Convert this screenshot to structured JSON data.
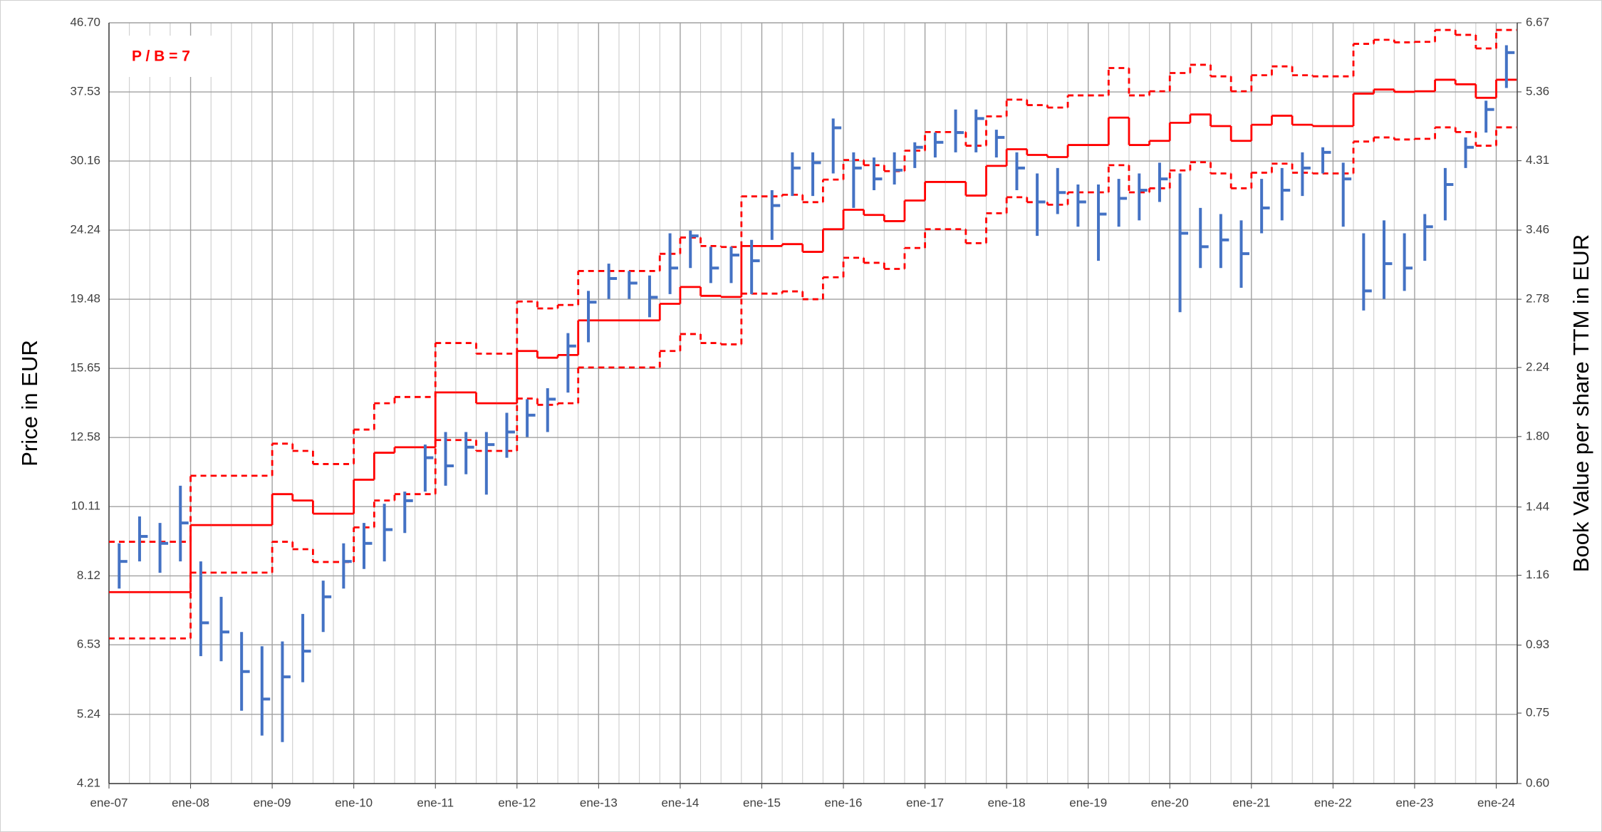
{
  "chart_data": {
    "type": "ohlc-bands",
    "annotation": "P / B = 7",
    "ylabel": "Price in EUR",
    "y2label": "Book Value per share TTM in EUR",
    "log_scale": true,
    "grid": true,
    "ylim": [
      4.21,
      46.7
    ],
    "yticks": [
      4.21,
      5.24,
      6.53,
      8.12,
      10.11,
      12.58,
      15.65,
      19.48,
      24.24,
      30.16,
      37.53,
      {
        "value": 46.7,
        "label": "46.70"
      }
    ],
    "y2lim": [
      0.6,
      6.67
    ],
    "y2ticks": [
      {
        "value": 0.6,
        "label": "0.60"
      },
      0.75,
      0.93,
      1.16,
      1.44,
      {
        "value": 1.8,
        "label": "1.80"
      },
      2.24,
      2.78,
      3.46,
      4.31,
      5.36,
      6.67
    ],
    "categories": [
      "ene-07",
      null,
      null,
      null,
      "ene-08",
      null,
      null,
      null,
      "ene-09",
      null,
      null,
      null,
      "ene-10",
      null,
      null,
      null,
      "ene-11",
      null,
      null,
      null,
      "ene-12",
      null,
      null,
      null,
      "ene-13",
      null,
      null,
      null,
      "ene-14",
      null,
      null,
      null,
      "ene-15",
      null,
      null,
      null,
      "ene-16",
      null,
      null,
      null,
      "ene-17",
      null,
      null,
      null,
      "ene-18",
      null,
      null,
      null,
      "ene-19",
      null,
      null,
      null,
      "ene-20",
      null,
      null,
      null,
      "ene-21",
      null,
      null,
      null,
      "ene-22",
      null,
      null,
      null,
      "ene-23",
      null,
      null,
      null,
      "ene-24"
    ],
    "price": {
      "color": "#4472c4",
      "high": [
        9,
        9.8,
        9.6,
        10.8,
        8.5,
        7.6,
        6.8,
        6.5,
        6.6,
        7.2,
        8,
        9,
        9.6,
        10.2,
        10.6,
        12.3,
        12.8,
        12.8,
        12.8,
        13.6,
        14.2,
        14.7,
        17.5,
        20,
        21.8,
        21.3,
        21,
        24,
        24.2,
        23,
        23,
        23.5,
        27.5,
        31,
        31,
        34.5,
        31,
        30.5,
        31,
        32,
        33,
        35.5,
        35.5,
        33.3,
        31,
        29,
        29.5,
        28,
        28,
        28.5,
        29,
        30,
        29,
        26,
        25.5,
        25,
        28.5,
        29.5,
        31,
        31.5,
        30,
        24,
        25,
        24,
        25.5,
        29.5,
        32.5,
        36.5,
        43.5
      ],
      "low": [
        7.8,
        8.5,
        8.2,
        8.5,
        6.3,
        6.2,
        5.3,
        4.9,
        4.8,
        5.8,
        6.8,
        7.8,
        8.3,
        8.5,
        9.3,
        10.6,
        10.8,
        11.2,
        10.5,
        11.8,
        12.6,
        12.8,
        14.5,
        17,
        19.5,
        19.5,
        18.4,
        19.8,
        21.5,
        20.5,
        20.5,
        19.8,
        23.5,
        27,
        27,
        29,
        26,
        27.5,
        28,
        29.5,
        30.5,
        31,
        31,
        30.5,
        27.5,
        23.8,
        25.5,
        24.5,
        22,
        24.5,
        25,
        26.5,
        18.7,
        21.5,
        21.5,
        20.2,
        24,
        25,
        27,
        29,
        24.5,
        18.8,
        19.5,
        20,
        22,
        25,
        29.5,
        33,
        38
      ],
      "close": [
        8.5,
        9.2,
        9,
        9.6,
        7,
        6.8,
        6,
        5.5,
        5.9,
        6.4,
        7.6,
        8.5,
        9,
        9.4,
        10.3,
        11.8,
        11.5,
        12.2,
        12.3,
        12.8,
        13.5,
        14.2,
        16.8,
        19.3,
        20.8,
        20.5,
        19.6,
        21.5,
        23.8,
        21.5,
        22.4,
        22,
        26.2,
        29.5,
        30,
        33.5,
        29.5,
        28.5,
        29.3,
        31.5,
        32,
        33,
        34.5,
        32.5,
        29.5,
        26.5,
        27.3,
        26.5,
        25.5,
        26.8,
        27.5,
        28.5,
        24,
        23,
        23.5,
        22.5,
        26,
        27.5,
        29.5,
        31,
        28.5,
        20,
        21.8,
        21.5,
        24.5,
        28,
        31.5,
        35.5,
        42.5
      ]
    },
    "series": [
      {
        "color": "#ff0000",
        "axis": "y2",
        "dashed": false,
        "values": [
          1.1,
          1.1,
          1.1,
          1.1,
          1.36,
          1.36,
          1.36,
          1.36,
          1.5,
          1.47,
          1.41,
          1.41,
          1.57,
          1.71,
          1.74,
          1.74,
          2.07,
          2.07,
          2,
          2,
          2.36,
          2.31,
          2.33,
          2.6,
          2.6,
          2.6,
          2.6,
          2.74,
          2.89,
          2.81,
          2.8,
          3.29,
          3.29,
          3.31,
          3.23,
          3.47,
          3.69,
          3.63,
          3.56,
          3.8,
          4.03,
          4.03,
          3.86,
          4.24,
          4.47,
          4.39,
          4.36,
          4.53,
          4.53,
          4.94,
          4.53,
          4.59,
          4.86,
          4.99,
          4.81,
          4.59,
          4.83,
          4.97,
          4.83,
          4.81,
          4.81,
          5.33,
          5.4,
          5.36,
          5.37,
          5.57,
          5.49,
          5.26,
          5.57
        ]
      },
      {
        "color": "#ff0000",
        "axis": "y2",
        "dashed": true,
        "values": [
          1.29,
          1.29,
          1.29,
          1.29,
          1.59,
          1.59,
          1.59,
          1.59,
          1.76,
          1.72,
          1.65,
          1.65,
          1.84,
          2,
          2.04,
          2.04,
          2.42,
          2.42,
          2.34,
          2.34,
          2.76,
          2.7,
          2.73,
          3.04,
          3.04,
          3.04,
          3.04,
          3.21,
          3.38,
          3.29,
          3.28,
          3.85,
          3.85,
          3.87,
          3.78,
          4.06,
          4.32,
          4.25,
          4.17,
          4.45,
          4.72,
          4.72,
          4.52,
          4.96,
          5.23,
          5.14,
          5.1,
          5.3,
          5.3,
          5.78,
          5.3,
          5.37,
          5.69,
          5.84,
          5.63,
          5.37,
          5.65,
          5.81,
          5.65,
          5.63,
          5.63,
          6.24,
          6.32,
          6.27,
          6.28,
          6.52,
          6.42,
          6.15,
          6.52
        ]
      },
      {
        "color": "#ff0000",
        "axis": "y2",
        "dashed": true,
        "values": [
          0.95,
          0.95,
          0.95,
          0.95,
          1.17,
          1.17,
          1.17,
          1.17,
          1.29,
          1.26,
          1.21,
          1.21,
          1.35,
          1.47,
          1.5,
          1.5,
          1.78,
          1.78,
          1.72,
          1.72,
          2.03,
          1.99,
          2,
          2.24,
          2.24,
          2.24,
          2.24,
          2.36,
          2.49,
          2.42,
          2.41,
          2.83,
          2.83,
          2.85,
          2.78,
          2.98,
          3.17,
          3.12,
          3.06,
          3.27,
          3.47,
          3.47,
          3.32,
          3.65,
          3.84,
          3.78,
          3.75,
          3.9,
          3.9,
          4.25,
          3.9,
          3.95,
          4.18,
          4.29,
          4.14,
          3.95,
          4.15,
          4.27,
          4.15,
          4.14,
          4.14,
          4.58,
          4.64,
          4.61,
          4.62,
          4.79,
          4.72,
          4.52,
          4.79
        ]
      }
    ]
  }
}
